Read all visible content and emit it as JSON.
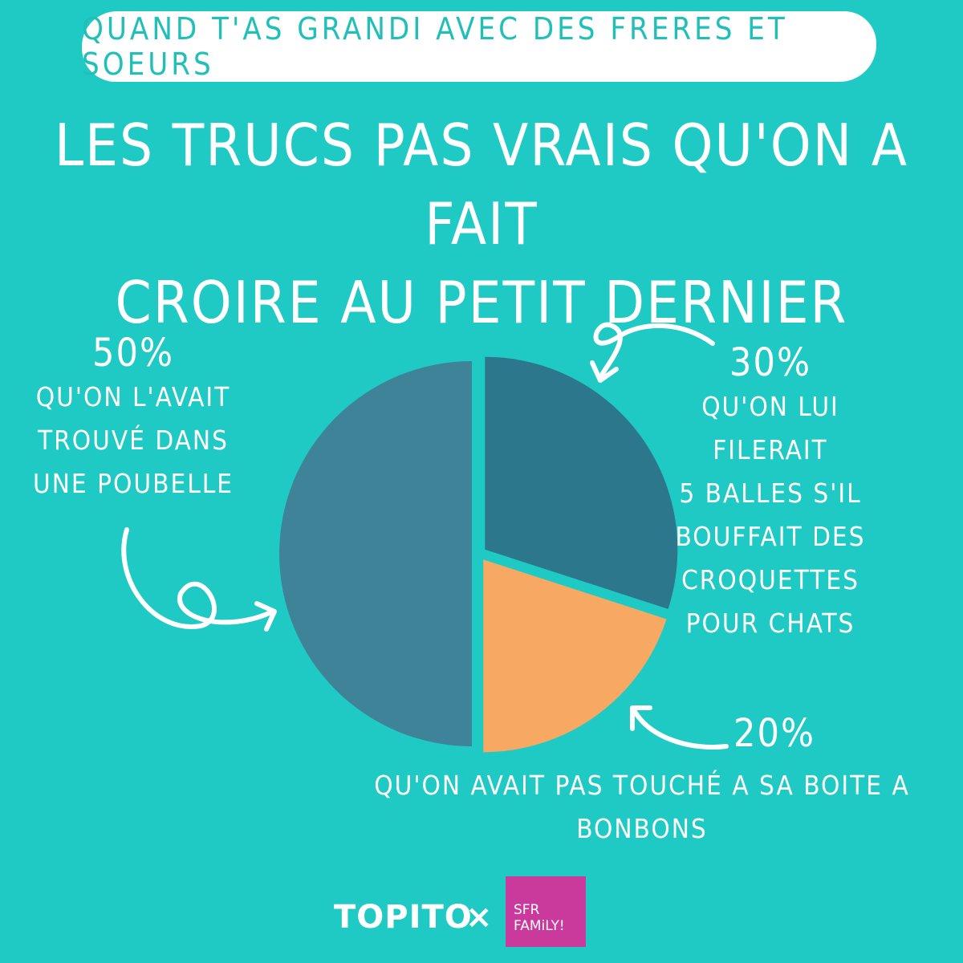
{
  "header": {
    "banner": "QUAND T'AS GRANDI AVEC DES FRERES ET SOEURS",
    "title_line1": "LES TRUCS PAS VRAIS QU'ON A FAIT",
    "title_line2": "CROIRE AU PETIT DERNIER"
  },
  "chart_data": {
    "type": "pie",
    "slices": [
      {
        "label": "QU'ON L'AVAIT TROUVÉ DANS UNE POUBELLE",
        "value": 50,
        "display": "50%",
        "color": "#3f8399"
      },
      {
        "label": "QU'ON LUI FILERAIT 5 BALLES S'IL BOUFFAIT DES CROQUETTES POUR CHATS",
        "value": 30,
        "display": "30%",
        "color": "#2c778c"
      },
      {
        "label": "QU'ON AVAIT PAS TOUCHÉ A SA BOITE A BONBONS",
        "value": 20,
        "display": "20%",
        "color": "#f7a963"
      }
    ],
    "legend": "none"
  },
  "labels": {
    "a_desc": [
      "QU'ON L'AVAIT",
      "TROUVÉ DANS",
      "UNE POUBELLE"
    ],
    "b_desc": [
      "QU'ON LUI FILERAIT",
      "5 BALLES S'IL",
      "BOUFFAIT DES",
      "CROQUETTES",
      "POUR CHATS"
    ],
    "c_desc": "QU'ON AVAIT PAS TOUCHÉ A SA BOITE A BONBONS"
  },
  "footer": {
    "brand": "TOPITO",
    "separator": "×",
    "partner_line1": "SFR",
    "partner_line2": "FAMiLY!"
  },
  "colors": {
    "background": "#20cac4",
    "banner_text": "#20bfb8",
    "partner_box": "#c93a9c"
  }
}
